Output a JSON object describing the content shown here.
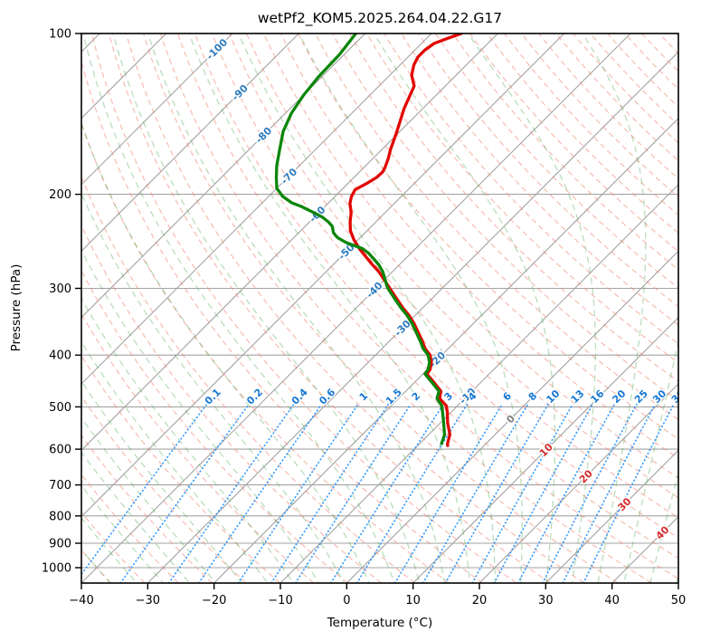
{
  "title": "wetPf2_KOM5.2025.264.04.22.G17",
  "axes": {
    "xlabel": "Temperature (°C)",
    "ylabel": "Pressure (hPa)",
    "x_tick_values": [
      -40,
      -30,
      -20,
      -10,
      0,
      10,
      20,
      30,
      40,
      50
    ],
    "x_tick_labels": [
      "−40",
      "−30",
      "−20",
      "−10",
      "0",
      "10",
      "20",
      "30",
      "40",
      "50"
    ],
    "p_tick_values": [
      100,
      200,
      300,
      400,
      500,
      600,
      700,
      800,
      900,
      1000
    ],
    "p_tick_labels": [
      "100",
      "200",
      "300",
      "400",
      "500",
      "600",
      "700",
      "800",
      "900",
      "1000"
    ]
  },
  "style": {
    "background": "#ffffff",
    "spine_color": "#000000",
    "grid_color": "#a3a3a3",
    "dry_adiabat_color": "#f08878",
    "moist_adiabat_color": "#4ca64c",
    "mixing_line_color": "#1e90ff",
    "temperature_color": "#e10600",
    "dewpoint_color": "#0a860a",
    "label_blue": "#2f7cbe",
    "label_red": "#d42a2a",
    "label_gray": "#7f7f7f",
    "mixing_label_color": "#1778d2"
  },
  "chart_data": {
    "type": "line",
    "kind": "skewt-logp",
    "title": "wetPf2_KOM5.2025.264.04.22.G17",
    "xlabel": "Temperature (°C)",
    "ylabel": "Pressure (hPa)",
    "x_range_at_bottom_degC": [
      -40,
      50
    ],
    "pressure_top_hPa": 100,
    "pressure_bottom_hPa": 1068,
    "skew_deg": 45,
    "grid": {
      "isotherms": {
        "min": -160,
        "max": 50,
        "step": 10
      },
      "dry_adiabats_theta": {
        "min": -60,
        "max": 190,
        "step": 5
      },
      "moist_adiabats_thetaw": {
        "min": -72,
        "max": 48,
        "step": 4
      },
      "mixing_ratio_g_per_kg": [
        0.1,
        0.2,
        0.4,
        0.6,
        1,
        1.5,
        2,
        3,
        4,
        6,
        8,
        10,
        13,
        16,
        20,
        25,
        30,
        36
      ],
      "mixing_line_top_hPa": 495,
      "mixing_label_pressure_hPa": 478
    },
    "isotherm_labels": [
      {
        "value": "-100",
        "t": -100,
        "p": 107,
        "color": "blue"
      },
      {
        "value": "-90",
        "t": -90,
        "p": 129,
        "color": "blue"
      },
      {
        "value": "-80",
        "t": -80,
        "p": 155,
        "color": "blue"
      },
      {
        "value": "-70",
        "t": -70,
        "p": 185,
        "color": "blue"
      },
      {
        "value": "-60",
        "t": -60,
        "p": 218,
        "color": "blue"
      },
      {
        "value": "-50",
        "t": -50,
        "p": 256,
        "color": "blue"
      },
      {
        "value": "-40",
        "t": -40,
        "p": 302,
        "color": "blue"
      },
      {
        "value": "-30",
        "t": -30,
        "p": 356,
        "color": "blue"
      },
      {
        "value": "-20",
        "t": -20,
        "p": 408,
        "color": "blue"
      },
      {
        "value": "-10",
        "t": -10,
        "p": 477,
        "color": "blue"
      },
      {
        "value": "0",
        "t": 0,
        "p": 527,
        "color": "gray"
      },
      {
        "value": "10",
        "t": 10,
        "p": 602,
        "color": "red"
      },
      {
        "value": "20",
        "t": 20,
        "p": 675,
        "color": "red"
      },
      {
        "value": "30",
        "t": 30,
        "p": 761,
        "color": "red"
      },
      {
        "value": "40",
        "t": 40,
        "p": 860,
        "color": "red"
      }
    ],
    "series": [
      {
        "name": "temperature",
        "color_key": "temperature_color",
        "points_p_T": [
          [
            100,
            -65.5
          ],
          [
            102.4,
            -67.0
          ],
          [
            104.4,
            -68.1
          ],
          [
            107.3,
            -68.5
          ],
          [
            110.7,
            -68.5
          ],
          [
            114.6,
            -67.9
          ],
          [
            119.7,
            -66.7
          ],
          [
            125.4,
            -64.7
          ],
          [
            131.4,
            -63.8
          ],
          [
            138.3,
            -62.8
          ],
          [
            146.6,
            -61.4
          ],
          [
            153.6,
            -60.3
          ],
          [
            158.4,
            -59.6
          ],
          [
            164.9,
            -58.7
          ],
          [
            171.3,
            -57.7
          ],
          [
            178.3,
            -56.8
          ],
          [
            181.7,
            -56.5
          ],
          [
            186,
            -56.6
          ],
          [
            191,
            -57.2
          ],
          [
            196,
            -58.0
          ],
          [
            202,
            -57.5
          ],
          [
            208,
            -56.7
          ],
          [
            216.6,
            -55.1
          ],
          [
            225.2,
            -53.9
          ],
          [
            234.1,
            -52.5
          ],
          [
            243.4,
            -50.6
          ],
          [
            253.1,
            -48.4
          ],
          [
            262,
            -46.2
          ],
          [
            270.4,
            -44.2
          ],
          [
            279,
            -42.1
          ],
          [
            299.4,
            -38.0
          ],
          [
            313.7,
            -35.3
          ],
          [
            326.2,
            -33.0
          ],
          [
            336.6,
            -31.0
          ],
          [
            348.7,
            -29.0
          ],
          [
            362.5,
            -27.0
          ],
          [
            376.9,
            -25.0
          ],
          [
            388.9,
            -23.5
          ],
          [
            399.7,
            -21.8
          ],
          [
            412.4,
            -20.5
          ],
          [
            425.5,
            -19.6
          ],
          [
            433.9,
            -19.4
          ],
          [
            451.2,
            -16.9
          ],
          [
            467.3,
            -14.7
          ],
          [
            482.2,
            -13.8
          ],
          [
            497.5,
            -11.7
          ],
          [
            511.3,
            -10.6
          ],
          [
            535.9,
            -8.9
          ],
          [
            563.6,
            -6.8
          ],
          [
            586.1,
            -5.8
          ],
          [
            590.7,
            -5.5
          ]
        ]
      },
      {
        "name": "dewpoint",
        "color_key": "dewpoint_color",
        "points_p_T": [
          [
            100,
            -81.4
          ],
          [
            109.4,
            -80.7
          ],
          [
            120.6,
            -80.5
          ],
          [
            130.4,
            -80.0
          ],
          [
            141,
            -79.1
          ],
          [
            152.5,
            -77.6
          ],
          [
            164.9,
            -75.4
          ],
          [
            176.9,
            -73.4
          ],
          [
            186,
            -71.7
          ],
          [
            194.9,
            -70.0
          ],
          [
            201.8,
            -67.9
          ],
          [
            207.4,
            -65.6
          ],
          [
            210.7,
            -63.6
          ],
          [
            216.6,
            -60.7
          ],
          [
            220.9,
            -58.7
          ],
          [
            225.2,
            -57.2
          ],
          [
            229.6,
            -55.9
          ],
          [
            235.9,
            -54.8
          ],
          [
            238.6,
            -54.1
          ],
          [
            241.4,
            -53.3
          ],
          [
            246.1,
            -51.4
          ],
          [
            249.9,
            -49.5
          ],
          [
            252.8,
            -48.0
          ],
          [
            257.7,
            -46.4
          ],
          [
            264.8,
            -44.6
          ],
          [
            271,
            -43.1
          ],
          [
            279,
            -41.5
          ],
          [
            299.4,
            -38.3
          ],
          [
            313.7,
            -35.6
          ],
          [
            326.2,
            -33.3
          ],
          [
            336.6,
            -31.3
          ],
          [
            348.7,
            -29.3
          ],
          [
            362.5,
            -27.3
          ],
          [
            376.9,
            -25.3
          ],
          [
            388.9,
            -23.8
          ],
          [
            399.7,
            -22.1
          ],
          [
            412.4,
            -20.8
          ],
          [
            425.5,
            -19.9
          ],
          [
            433.9,
            -19.7
          ],
          [
            451.2,
            -17.2
          ],
          [
            467.3,
            -15.0
          ],
          [
            482.2,
            -14.2
          ],
          [
            497.5,
            -12.4
          ],
          [
            511.3,
            -11.3
          ],
          [
            535.9,
            -9.5
          ],
          [
            563.6,
            -7.6
          ],
          [
            586.1,
            -6.7
          ]
        ]
      }
    ]
  }
}
